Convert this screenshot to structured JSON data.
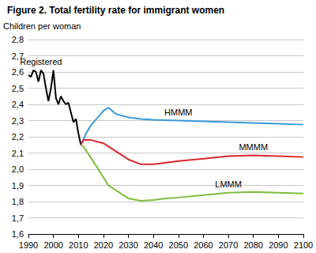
{
  "chart_data": {
    "type": "line",
    "title": "Figure 2. Total fertility rate for immigrant women",
    "y_label": "Children per woman",
    "xlim": [
      1990,
      2100
    ],
    "xticks": [
      1990,
      2000,
      2010,
      2020,
      2030,
      2040,
      2050,
      2060,
      2070,
      2080,
      2090,
      2100
    ],
    "ylim": [
      1.6,
      2.8
    ],
    "yticks": [
      {
        "value": 1.6,
        "label": "1,6"
      },
      {
        "value": 1.7,
        "label": "1,7"
      },
      {
        "value": 1.8,
        "label": "1,8"
      },
      {
        "value": 1.9,
        "label": "1,9"
      },
      {
        "value": 2.0,
        "label": "2,0"
      },
      {
        "value": 2.1,
        "label": "2,1"
      },
      {
        "value": 2.2,
        "label": "2,2"
      },
      {
        "value": 2.3,
        "label": "2,3"
      },
      {
        "value": 2.4,
        "label": "2,4"
      },
      {
        "value": 2.5,
        "label": "2,5"
      },
      {
        "value": 2.6,
        "label": "2,6"
      },
      {
        "value": 2.7,
        "label": "2,7"
      },
      {
        "value": 2.8,
        "label": "2,8"
      }
    ],
    "grid": true,
    "series": [
      {
        "name": "Registered",
        "color": "#000000",
        "x": [
          1990,
          1991,
          1992,
          1993,
          1994,
          1995,
          1996,
          1997,
          1998,
          1999,
          2000,
          2001,
          2002,
          2003,
          2004,
          2005,
          2006,
          2007,
          2008,
          2009,
          2010,
          2011
        ],
        "values": [
          2.58,
          2.57,
          2.61,
          2.6,
          2.54,
          2.61,
          2.59,
          2.5,
          2.42,
          2.5,
          2.61,
          2.44,
          2.4,
          2.45,
          2.42,
          2.4,
          2.41,
          2.35,
          2.29,
          2.31,
          2.22,
          2.15
        ]
      },
      {
        "name": "HMMM",
        "color": "#3a9ad9",
        "x": [
          2011,
          2013,
          2015,
          2020,
          2022,
          2025,
          2030,
          2035,
          2040,
          2050,
          2060,
          2070,
          2080,
          2090,
          2100
        ],
        "values": [
          2.15,
          2.22,
          2.27,
          2.36,
          2.38,
          2.34,
          2.32,
          2.31,
          2.305,
          2.3,
          2.295,
          2.29,
          2.285,
          2.28,
          2.275
        ]
      },
      {
        "name": "MMMM",
        "color": "#d9282e",
        "x": [
          2011,
          2012,
          2015,
          2020,
          2025,
          2030,
          2035,
          2040,
          2045,
          2050,
          2060,
          2070,
          2080,
          2090,
          2100
        ],
        "values": [
          2.15,
          2.18,
          2.18,
          2.16,
          2.11,
          2.06,
          2.03,
          2.03,
          2.04,
          2.05,
          2.065,
          2.08,
          2.085,
          2.08,
          2.075
        ]
      },
      {
        "name": "LMMM",
        "color": "#7dbd3f",
        "x": [
          2011,
          2012,
          2015,
          2020,
          2022,
          2025,
          2030,
          2035,
          2040,
          2045,
          2050,
          2060,
          2070,
          2080,
          2090,
          2100
        ],
        "values": [
          2.15,
          2.14,
          2.07,
          1.95,
          1.9,
          1.87,
          1.82,
          1.805,
          1.81,
          1.82,
          1.825,
          1.84,
          1.855,
          1.86,
          1.855,
          1.85
        ]
      }
    ]
  }
}
